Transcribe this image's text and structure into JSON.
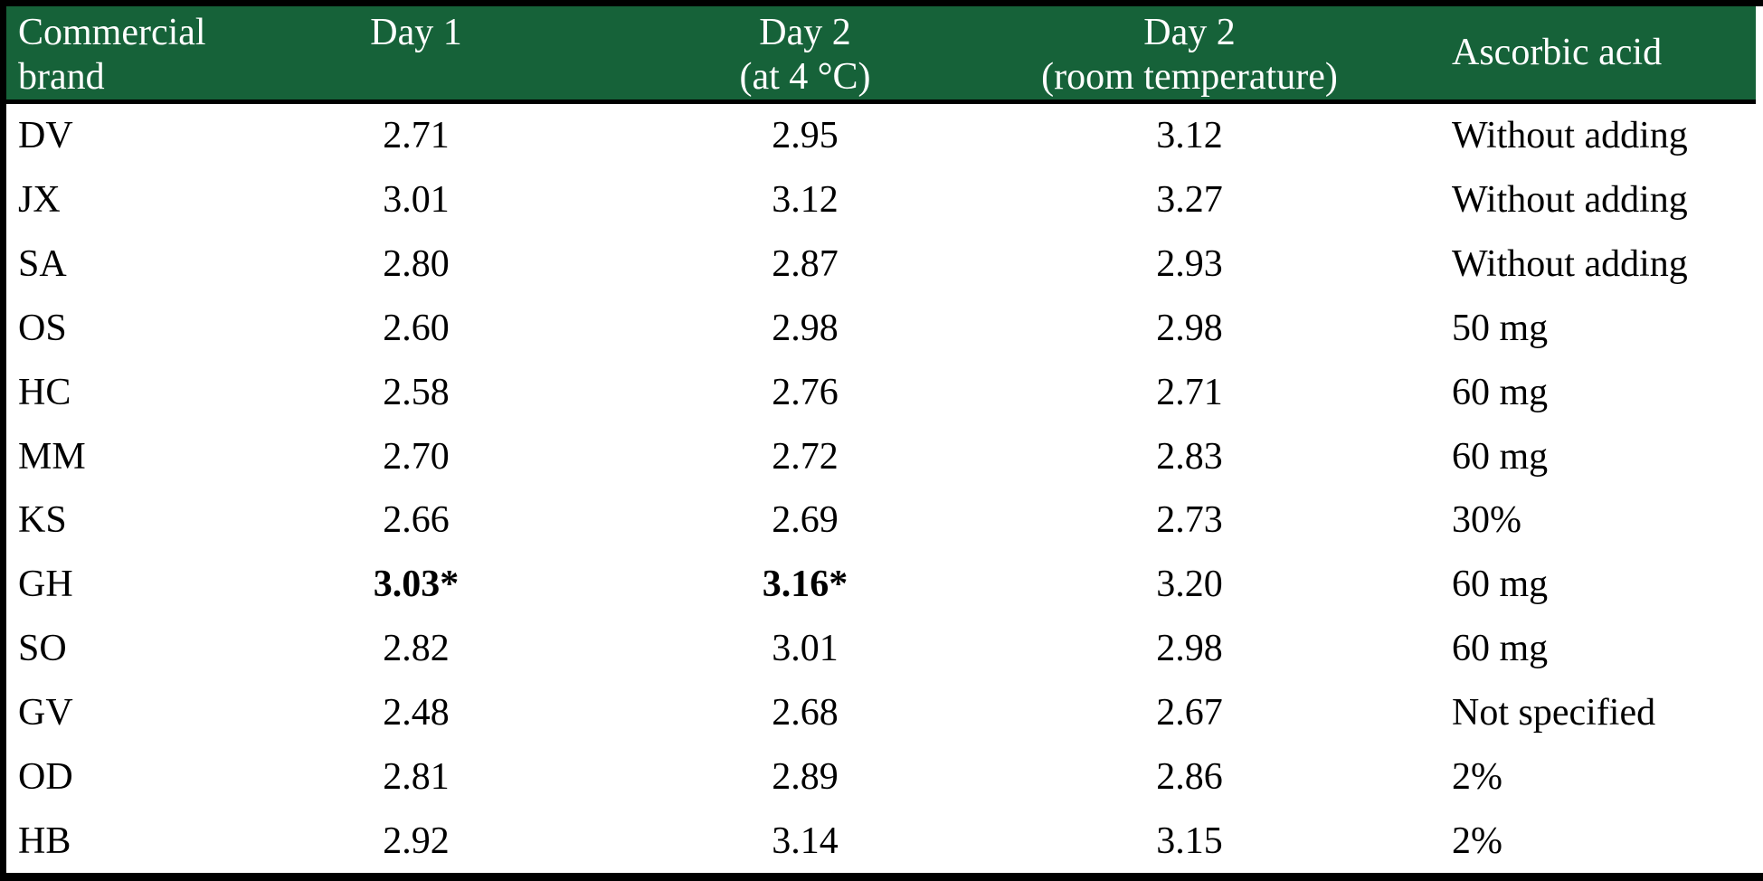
{
  "colors": {
    "header_background": "#166239",
    "header_text": "#ffffff",
    "body_text": "#000000",
    "border": "#000000",
    "body_background": "#ffffff"
  },
  "header": {
    "brand": "Commercial brand",
    "day1": "Day 1",
    "day2_cold": "Day 2\n(at 4 °C)",
    "day2_room": "Day 2\n(room temperature)",
    "ascorbic": "Ascorbic acid"
  },
  "rows": [
    {
      "brand": "DV",
      "day1": "2.71",
      "day2_cold": "2.95",
      "day2_room": "3.12",
      "ascorbic": "Without adding",
      "bold": []
    },
    {
      "brand": "JX",
      "day1": "3.01",
      "day2_cold": "3.12",
      "day2_room": "3.27",
      "ascorbic": "Without adding",
      "bold": []
    },
    {
      "brand": "SA",
      "day1": "2.80",
      "day2_cold": "2.87",
      "day2_room": "2.93",
      "ascorbic": "Without adding",
      "bold": []
    },
    {
      "brand": "OS",
      "day1": "2.60",
      "day2_cold": "2.98",
      "day2_room": "2.98",
      "ascorbic": "50 mg",
      "bold": []
    },
    {
      "brand": "HC",
      "day1": "2.58",
      "day2_cold": "2.76",
      "day2_room": "2.71",
      "ascorbic": "60 mg",
      "bold": []
    },
    {
      "brand": "MM",
      "day1": "2.70",
      "day2_cold": "2.72",
      "day2_room": "2.83",
      "ascorbic": "60 mg",
      "bold": []
    },
    {
      "brand": "KS",
      "day1": "2.66",
      "day2_cold": "2.69",
      "day2_room": "2.73",
      "ascorbic": "30%",
      "bold": []
    },
    {
      "brand": "GH",
      "day1": "3.03*",
      "day2_cold": "3.16*",
      "day2_room": "3.20",
      "ascorbic": "60 mg",
      "bold": [
        "day1",
        "day2_cold"
      ]
    },
    {
      "brand": "SO",
      "day1": "2.82",
      "day2_cold": "3.01",
      "day2_room": "2.98",
      "ascorbic": "60 mg",
      "bold": []
    },
    {
      "brand": "GV",
      "day1": "2.48",
      "day2_cold": "2.68",
      "day2_room": "2.67",
      "ascorbic": "Not specified",
      "bold": []
    },
    {
      "brand": "OD",
      "day1": "2.81",
      "day2_cold": "2.89",
      "day2_room": "2.86",
      "ascorbic": "2%",
      "bold": []
    },
    {
      "brand": "HB",
      "day1": "2.92",
      "day2_cold": "3.14",
      "day2_room": "3.15",
      "ascorbic": "2%",
      "bold": []
    }
  ],
  "chart_data": {
    "type": "table",
    "columns": [
      "Commercial brand",
      "Day 1",
      "Day 2 (at 4 °C)",
      "Day 2 (room temperature)",
      "Ascorbic acid"
    ],
    "rows": [
      [
        "DV",
        "2.71",
        "2.95",
        "3.12",
        "Without adding"
      ],
      [
        "JX",
        "3.01",
        "3.12",
        "3.27",
        "Without adding"
      ],
      [
        "SA",
        "2.80",
        "2.87",
        "2.93",
        "Without adding"
      ],
      [
        "OS",
        "2.60",
        "2.98",
        "2.98",
        "50 mg"
      ],
      [
        "HC",
        "2.58",
        "2.76",
        "2.71",
        "60 mg"
      ],
      [
        "MM",
        "2.70",
        "2.72",
        "2.83",
        "60 mg"
      ],
      [
        "KS",
        "2.66",
        "2.69",
        "2.73",
        "30%"
      ],
      [
        "GH",
        "3.03*",
        "3.16*",
        "3.20",
        "60 mg"
      ],
      [
        "SO",
        "2.82",
        "3.01",
        "2.98",
        "60 mg"
      ],
      [
        "GV",
        "2.48",
        "2.68",
        "2.67",
        "Not specified"
      ],
      [
        "OD",
        "2.81",
        "2.89",
        "2.86",
        "2%"
      ],
      [
        "HB",
        "2.92",
        "3.14",
        "3.15",
        "2%"
      ]
    ],
    "emphasized_cells": [
      {
        "row": "GH",
        "column": "Day 1",
        "value": "3.03*",
        "style": "bold"
      },
      {
        "row": "GH",
        "column": "Day 2 (at 4 °C)",
        "value": "3.16*",
        "style": "bold"
      }
    ]
  }
}
